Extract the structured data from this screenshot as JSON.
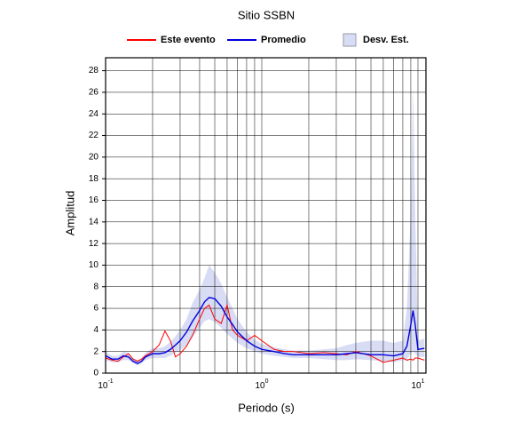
{
  "chart_data": {
    "type": "line",
    "title": "Sitio SSBN",
    "x_label": "Periodo (s)",
    "y_label": "Amplitud",
    "x_scale": "log",
    "xlim": [
      0.1,
      11.25
    ],
    "ylim": [
      0,
      29.2
    ],
    "xticks": [
      {
        "value": 0.1,
        "label": "10",
        "exponent": "-1"
      },
      {
        "value": 1,
        "label": "10",
        "exponent": "0"
      },
      {
        "value": 10,
        "label": "10",
        "exponent": "1"
      }
    ],
    "x_grid": [
      0.2,
      0.3,
      0.4,
      0.5,
      0.6,
      0.7,
      0.8,
      0.9,
      2,
      3,
      4,
      5,
      6,
      7,
      8,
      9
    ],
    "yticks": [
      0,
      2,
      4,
      6,
      8,
      10,
      12,
      14,
      16,
      18,
      20,
      22,
      24,
      26,
      28
    ],
    "grid": true,
    "legend": "top",
    "x": [
      0.1,
      0.11,
      0.12,
      0.13,
      0.14,
      0.15,
      0.16,
      0.17,
      0.18,
      0.2,
      0.22,
      0.24,
      0.26,
      0.28,
      0.3,
      0.33,
      0.36,
      0.4,
      0.43,
      0.46,
      0.5,
      0.55,
      0.6,
      0.65,
      0.7,
      0.8,
      0.9,
      1.0,
      1.2,
      1.4,
      1.6,
      2,
      2.5,
      3,
      3.5,
      4,
      5,
      6,
      7,
      8,
      8.5,
      9,
      9.3,
      9.6,
      10,
      11
    ],
    "series": [
      {
        "name": "Este evento",
        "color": "#ff0000",
        "values": [
          1.4,
          1.2,
          1.1,
          1.5,
          1.8,
          1.3,
          1.1,
          1.3,
          1.6,
          2.0,
          2.6,
          3.9,
          3.0,
          1.5,
          1.8,
          2.5,
          3.5,
          5.0,
          6.0,
          6.3,
          5.0,
          4.6,
          6.3,
          4.0,
          3.5,
          3.0,
          3.5,
          3.0,
          2.2,
          2.0,
          2.0,
          1.8,
          1.9,
          1.8,
          1.7,
          2.0,
          1.6,
          1.0,
          1.2,
          1.4,
          1.2,
          1.3,
          1.2,
          1.4,
          1.4,
          1.2
        ]
      },
      {
        "name": "Promedio",
        "color": "#0000dd",
        "values": [
          1.6,
          1.3,
          1.3,
          1.6,
          1.5,
          1.1,
          0.9,
          1.1,
          1.5,
          1.8,
          1.8,
          1.9,
          2.2,
          2.6,
          3.0,
          3.8,
          4.8,
          5.8,
          6.6,
          7.0,
          6.9,
          6.2,
          5.2,
          4.5,
          3.8,
          3.0,
          2.5,
          2.2,
          2.0,
          1.8,
          1.7,
          1.7,
          1.7,
          1.7,
          1.8,
          1.9,
          1.7,
          1.7,
          1.6,
          1.8,
          2.5,
          4.5,
          5.8,
          4.5,
          2.2,
          2.3
        ]
      }
    ],
    "band": {
      "name": "Desv. Est.",
      "color": "#d8dcf4",
      "low": [
        1.2,
        1.0,
        1.0,
        1.2,
        1.2,
        0.9,
        0.7,
        0.9,
        1.2,
        1.4,
        1.4,
        1.4,
        1.6,
        1.9,
        2.1,
        2.6,
        3.3,
        4.2,
        4.8,
        5.0,
        4.7,
        4.2,
        3.6,
        3.2,
        2.8,
        2.3,
        2.0,
        1.8,
        1.6,
        1.5,
        1.4,
        1.4,
        1.3,
        1.2,
        1.2,
        1.3,
        1.2,
        1.1,
        1.0,
        1.2,
        1.3,
        1.8,
        2.0,
        1.8,
        1.5,
        1.5
      ],
      "high": [
        2.0,
        1.6,
        1.6,
        2.0,
        1.9,
        1.4,
        1.2,
        1.4,
        1.9,
        2.3,
        2.3,
        2.5,
        2.9,
        3.4,
        4.0,
        5.0,
        6.5,
        7.7,
        8.8,
        10.0,
        9.3,
        8.3,
        7.0,
        6.0,
        5.0,
        3.8,
        3.1,
        2.7,
        2.4,
        2.2,
        2.1,
        2.1,
        2.2,
        2.3,
        2.6,
        2.8,
        3.0,
        3.0,
        2.8,
        3.0,
        6.0,
        15.0,
        26.5,
        15.0,
        3.0,
        3.2
      ]
    }
  }
}
